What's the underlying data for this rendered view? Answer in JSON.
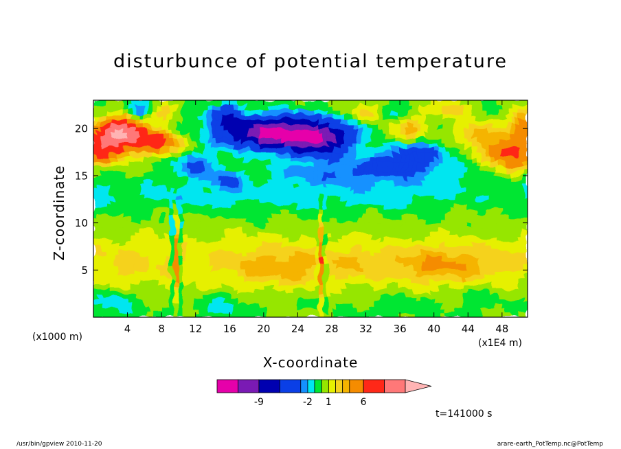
{
  "chart_data": {
    "type": "contour",
    "title": "disturbunce of potential temperature",
    "xlabel": "X-coordinate",
    "ylabel": "Z-coordinate",
    "x_unit_left": "(x1000 m)",
    "x_unit_right": "(x1E4 m)",
    "xlim": [
      0,
      51
    ],
    "ylim": [
      0,
      23
    ],
    "x_ticks": [
      4,
      8,
      12,
      16,
      20,
      24,
      28,
      32,
      36,
      40,
      44,
      48
    ],
    "y_ticks": [
      5,
      10,
      15,
      20
    ],
    "time_label": "t=141000 s",
    "colorbar": {
      "levels": [
        -15,
        -12,
        -9,
        -6,
        -3,
        -2,
        -1,
        0,
        1,
        2,
        3,
        4,
        6,
        9,
        12
      ],
      "labels": [
        "-9",
        "-2",
        "1",
        "6"
      ],
      "label_values": [
        -9,
        -2,
        1,
        6
      ],
      "colors": [
        "#e600aa",
        "#7a1ab4",
        "#0000b0",
        "#0a3fe6",
        "#1491ff",
        "#00e6f0",
        "#00e632",
        "#96e600",
        "#e6f000",
        "#f5d21e",
        "#f5b400",
        "#f58c00",
        "#ff2818",
        "#ff7878",
        "#ffb4b4"
      ]
    },
    "features": [
      {
        "name": "strong-negative-core",
        "x": [
          16,
          28
        ],
        "z": [
          17,
          21
        ],
        "min_value": -12
      },
      {
        "name": "upper-positive-left",
        "x": [
          1,
          9
        ],
        "z": [
          17,
          21
        ],
        "max_value": 12
      },
      {
        "name": "upper-positive-right",
        "x": [
          46,
          51
        ],
        "z": [
          16,
          21
        ],
        "max_value": 9
      },
      {
        "name": "lower-positive-band",
        "x": [
          12,
          45
        ],
        "z": [
          3,
          8
        ],
        "max_value": 6
      },
      {
        "name": "mountain-wave-1",
        "x": [
          8,
          12
        ],
        "z": [
          0,
          11
        ]
      },
      {
        "name": "mountain-wave-2",
        "x": [
          25.5,
          28
        ],
        "z": [
          0,
          12
        ]
      }
    ]
  },
  "footer": {
    "left": "/usr/bin/gpview   2010-11-20",
    "right": "arare-earth_PotTemp.nc@PotTemp"
  }
}
